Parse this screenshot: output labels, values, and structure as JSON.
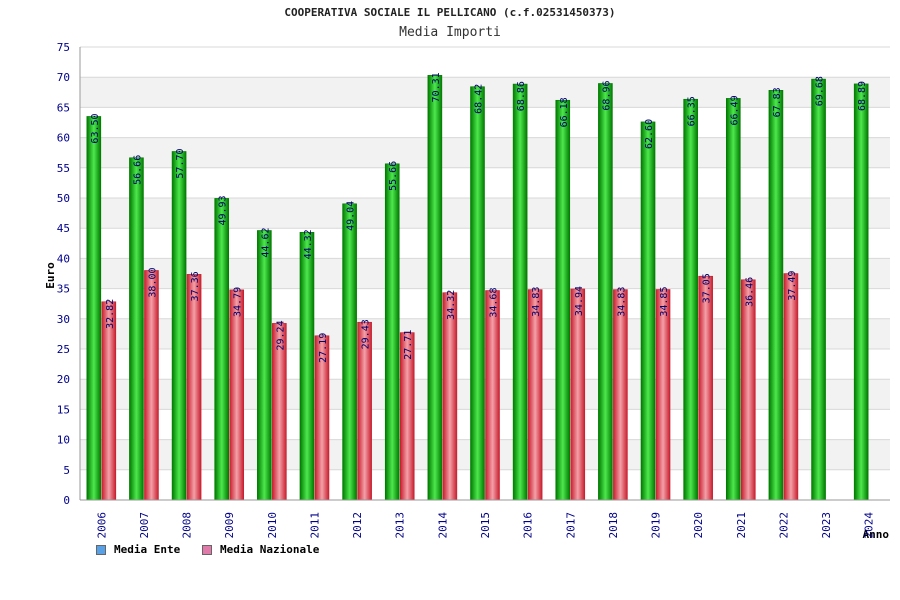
{
  "title": "COOPERATIVA SOCIALE IL PELLICANO (c.f.02531450373)",
  "subtitle": "Media Importi",
  "legend": {
    "ente_label": "Media Ente",
    "nazionale_label": "Media Nazionale",
    "ente_color": "#5aa0e6",
    "nazionale_color": "#e07aa8"
  },
  "colors": {
    "ente_bar_dark": "#007a00",
    "ente_bar_light": "#55f055",
    "naz_bar_dark": "#c81e2e",
    "naz_bar_light": "#f4a0a8",
    "axis_text": "#00008b",
    "band": "#f2f2f2"
  },
  "chart_data": {
    "type": "bar",
    "title": "COOPERATIVA SOCIALE IL PELLICANO (c.f.02531450373)",
    "subtitle": "Media Importi",
    "xlabel": "Anno",
    "ylabel": "Euro",
    "ylim": [
      0,
      75
    ],
    "yticks": [
      0,
      5,
      10,
      15,
      20,
      25,
      30,
      35,
      40,
      45,
      50,
      55,
      60,
      65,
      70,
      75
    ],
    "categories": [
      "2006",
      "2007",
      "2008",
      "2009",
      "2010",
      "2011",
      "2012",
      "2013",
      "2014",
      "2015",
      "2016",
      "2017",
      "2018",
      "2019",
      "2020",
      "2021",
      "2022",
      "2023",
      "2024"
    ],
    "series": [
      {
        "name": "Media Ente",
        "values": [
          63.5,
          56.66,
          57.7,
          49.93,
          44.62,
          44.32,
          49.04,
          55.66,
          70.31,
          68.42,
          68.86,
          66.18,
          68.96,
          62.6,
          66.35,
          66.49,
          67.83,
          69.68,
          68.89
        ],
        "labels": [
          "63.50",
          "56.66",
          "57.70",
          "49.93",
          "44.62",
          "44.32",
          "49.04",
          "55.66",
          "70.31",
          "68.42",
          "68.86",
          "66.18",
          "68.96",
          "62.60",
          "66.35",
          "66.49",
          "67.83",
          "69.68",
          "68.89"
        ]
      },
      {
        "name": "Media Nazionale",
        "values": [
          32.82,
          38.0,
          37.36,
          34.79,
          29.24,
          27.19,
          29.43,
          27.71,
          34.32,
          34.68,
          34.83,
          34.94,
          34.83,
          34.85,
          37.05,
          36.46,
          37.49,
          null,
          null
        ],
        "labels": [
          "32.82",
          "38.00",
          "37.36",
          "34.79",
          "29.24",
          "27.19",
          "29.43",
          "27.71",
          "34.32",
          "34.68",
          "34.83",
          "34.94",
          "34.83",
          "34.85",
          "37.05",
          "36.46",
          "37.49",
          null,
          null
        ]
      }
    ]
  }
}
